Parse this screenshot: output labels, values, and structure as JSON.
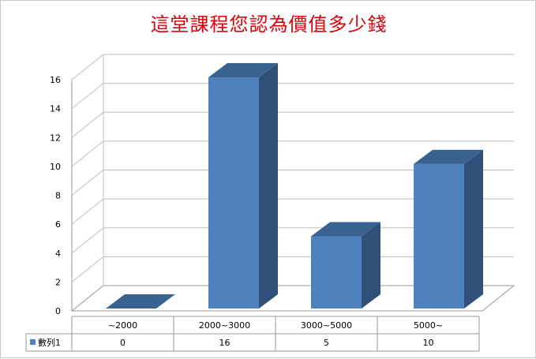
{
  "chart_data": {
    "type": "bar",
    "title": "這堂課程您認為價值多少錢",
    "categories": [
      "~2000",
      "2000~3000",
      "3000~5000",
      "5000~"
    ],
    "series": [
      {
        "name": "數列1",
        "values": [
          0,
          16,
          5,
          10
        ]
      }
    ],
    "ylim": [
      0,
      16
    ],
    "yticks": [
      0,
      2,
      4,
      6,
      8,
      10,
      12,
      14,
      16
    ],
    "grid": true,
    "legend": "data-table",
    "style": "3d-column",
    "colors": {
      "bar_front": "#4f81bd",
      "bar_top": "#3a6290",
      "bar_side": "#2f5079",
      "grid": "#bdbdbd",
      "title": "#e0000a"
    }
  }
}
